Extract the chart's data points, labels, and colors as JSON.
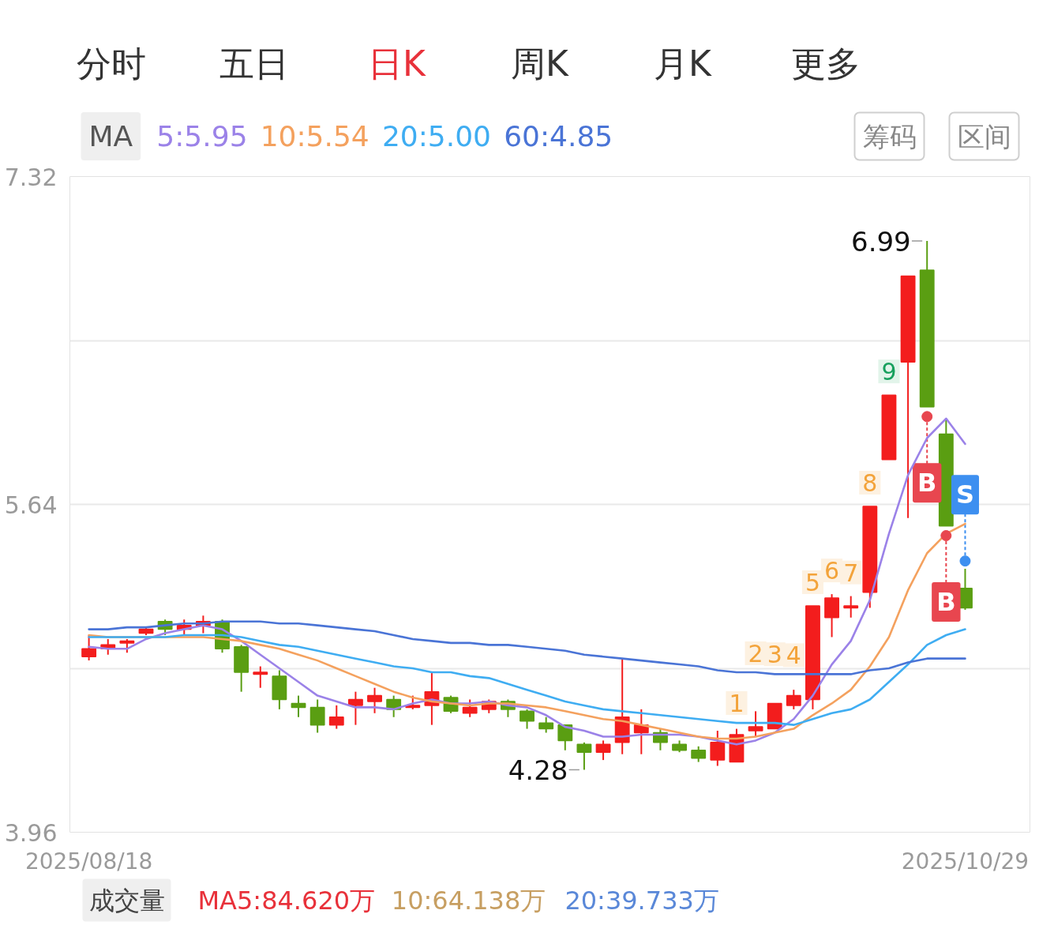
{
  "chart_data": {
    "type": "candlestick",
    "legend": "top left",
    "legend_title": "MA",
    "grid": "y",
    "categories": [
      "2025/08/18",
      null,
      null,
      null,
      null,
      null,
      null,
      null,
      null,
      null,
      null,
      null,
      null,
      null,
      null,
      null,
      null,
      null,
      null,
      null,
      null,
      null,
      null,
      null,
      null,
      null,
      null,
      null,
      null,
      null,
      null,
      null,
      null,
      null,
      null,
      null,
      null,
      null,
      null,
      null,
      null,
      null,
      null,
      null,
      null,
      null,
      "2025/10/29"
    ],
    "ohlc": [
      [
        4.86,
        4.97,
        4.84,
        4.9
      ],
      [
        4.9,
        4.95,
        4.87,
        4.92
      ],
      [
        4.93,
        4.95,
        4.88,
        4.94
      ],
      [
        4.98,
        5.01,
        4.97,
        5.0
      ],
      [
        5.04,
        5.05,
        4.97,
        5.0
      ],
      [
        5.0,
        5.05,
        4.97,
        5.02
      ],
      [
        5.02,
        5.07,
        4.98,
        5.04
      ],
      [
        5.04,
        5.05,
        4.88,
        4.9
      ],
      [
        4.91,
        4.92,
        4.68,
        4.78
      ],
      [
        4.77,
        4.81,
        4.7,
        4.78
      ],
      [
        4.76,
        4.79,
        4.59,
        4.64
      ],
      [
        4.62,
        4.66,
        4.55,
        4.6
      ],
      [
        4.6,
        4.64,
        4.47,
        4.51
      ],
      [
        4.51,
        4.61,
        4.49,
        4.55
      ],
      [
        4.61,
        4.68,
        4.51,
        4.64
      ],
      [
        4.63,
        4.7,
        4.57,
        4.66
      ],
      [
        4.64,
        4.66,
        4.55,
        4.59
      ],
      [
        4.6,
        4.66,
        4.59,
        4.61
      ],
      [
        4.61,
        4.78,
        4.51,
        4.68
      ],
      [
        4.65,
        4.66,
        4.57,
        4.58
      ],
      [
        4.57,
        4.64,
        4.55,
        4.6
      ],
      [
        4.59,
        4.64,
        4.57,
        4.63
      ],
      [
        4.63,
        4.64,
        4.55,
        4.59
      ],
      [
        4.58,
        4.59,
        4.49,
        4.53
      ],
      [
        4.52,
        4.55,
        4.47,
        4.49
      ],
      [
        4.51,
        4.51,
        4.38,
        4.43
      ],
      [
        4.41,
        4.42,
        4.28,
        4.37
      ],
      [
        4.37,
        4.43,
        4.33,
        4.41
      ],
      [
        4.42,
        4.85,
        4.36,
        4.55
      ],
      [
        4.47,
        4.59,
        4.36,
        4.51
      ],
      [
        4.47,
        4.49,
        4.38,
        4.42
      ],
      [
        4.41,
        4.43,
        4.37,
        4.38
      ],
      [
        4.38,
        4.4,
        4.32,
        4.34
      ],
      [
        4.33,
        4.48,
        4.3,
        4.42
      ],
      [
        4.32,
        4.49,
        4.32,
        4.46
      ],
      [
        4.48,
        4.58,
        4.45,
        4.5
      ],
      [
        4.49,
        4.62,
        4.49,
        4.62
      ],
      [
        4.61,
        4.69,
        4.59,
        4.66
      ],
      [
        4.64,
        5.12,
        4.59,
        5.12
      ],
      [
        5.06,
        5.18,
        4.96,
        5.16
      ],
      [
        5.11,
        5.17,
        5.06,
        5.12
      ],
      [
        5.19,
        5.63,
        5.11,
        5.63
      ],
      [
        5.87,
        6.2,
        5.87,
        6.2
      ],
      [
        6.37,
        6.81,
        5.57,
        6.81
      ],
      [
        6.84,
        6.99,
        6.14,
        6.14
      ],
      [
        6.0,
        6.08,
        5.53,
        5.53
      ],
      [
        5.21,
        5.31,
        5.1,
        5.11
      ]
    ],
    "colors": [
      "#f31d1d",
      "#f31d1d",
      "#f31d1d",
      "#f31d1d",
      "#5a9e12",
      "#f31d1d",
      "#f31d1d",
      "#5a9e12",
      "#5a9e12",
      "#f31d1d",
      "#5a9e12",
      "#5a9e12",
      "#5a9e12",
      "#f31d1d",
      "#f31d1d",
      "#f31d1d",
      "#5a9e12",
      "#f31d1d",
      "#f31d1d",
      "#5a9e12",
      "#f31d1d",
      "#f31d1d",
      "#5a9e12",
      "#5a9e12",
      "#5a9e12",
      "#5a9e12",
      "#5a9e12",
      "#f31d1d",
      "#f31d1d",
      "#f31d1d",
      "#5a9e12",
      "#5a9e12",
      "#5a9e12",
      "#f31d1d",
      "#f31d1d",
      "#f31d1d",
      "#f31d1d",
      "#f31d1d",
      "#f31d1d",
      "#f31d1d",
      "#f31d1d",
      "#f31d1d",
      "#f31d1d",
      "#f31d1d",
      "#5a9e12",
      "#5a9e12",
      "#5a9e12"
    ],
    "series": [
      {
        "name": "5:5.95",
        "type": "line",
        "color": "#9b82e8",
        "values": [
          4.91,
          4.9,
          4.9,
          4.95,
          4.98,
          5.0,
          5.02,
          5.0,
          4.94,
          4.87,
          4.8,
          4.73,
          4.66,
          4.63,
          4.6,
          4.6,
          4.59,
          4.62,
          4.64,
          4.62,
          4.62,
          4.63,
          4.61,
          4.6,
          4.56,
          4.5,
          4.48,
          4.45,
          4.45,
          4.46,
          4.46,
          4.46,
          4.45,
          4.43,
          4.41,
          4.43,
          4.47,
          4.54,
          4.66,
          4.82,
          4.94,
          5.15,
          5.49,
          5.79,
          5.98,
          6.08,
          5.95
        ]
      },
      {
        "name": "10:5.54",
        "type": "line",
        "color": "#f4a15e",
        "values": [
          4.97,
          4.96,
          4.96,
          4.96,
          4.96,
          4.96,
          4.96,
          4.95,
          4.94,
          4.92,
          4.9,
          4.87,
          4.84,
          4.8,
          4.76,
          4.72,
          4.68,
          4.65,
          4.63,
          4.62,
          4.61,
          4.62,
          4.62,
          4.61,
          4.6,
          4.58,
          4.56,
          4.54,
          4.53,
          4.51,
          4.49,
          4.47,
          4.45,
          4.44,
          4.44,
          4.45,
          4.47,
          4.49,
          4.56,
          4.62,
          4.69,
          4.81,
          4.96,
          5.2,
          5.39,
          5.49,
          5.54
        ]
      },
      {
        "name": "20:5.00",
        "type": "line",
        "color": "#3fadf2",
        "values": [
          4.96,
          4.96,
          4.96,
          4.96,
          4.96,
          4.97,
          4.97,
          4.97,
          4.96,
          4.94,
          4.92,
          4.91,
          4.89,
          4.87,
          4.85,
          4.83,
          4.81,
          4.8,
          4.78,
          4.78,
          4.76,
          4.75,
          4.72,
          4.69,
          4.66,
          4.63,
          4.61,
          4.59,
          4.58,
          4.57,
          4.56,
          4.55,
          4.54,
          4.53,
          4.52,
          4.52,
          4.52,
          4.51,
          4.54,
          4.57,
          4.59,
          4.64,
          4.73,
          4.82,
          4.92,
          4.97,
          5.0
        ]
      },
      {
        "name": "60:4.85",
        "type": "line",
        "color": "#4a74d6",
        "values": [
          5.0,
          5.0,
          5.01,
          5.01,
          5.02,
          5.03,
          5.03,
          5.04,
          5.04,
          5.04,
          5.03,
          5.03,
          5.02,
          5.01,
          5.0,
          4.99,
          4.97,
          4.95,
          4.94,
          4.93,
          4.93,
          4.92,
          4.92,
          4.91,
          4.9,
          4.89,
          4.87,
          4.86,
          4.85,
          4.84,
          4.83,
          4.82,
          4.81,
          4.79,
          4.78,
          4.78,
          4.77,
          4.77,
          4.77,
          4.77,
          4.77,
          4.79,
          4.8,
          4.83,
          4.85,
          4.85,
          4.85
        ]
      },
      {
        "type": "scatter",
        "marker": "circle",
        "color": "#e8464f",
        "values": [
          null,
          null,
          null,
          null,
          null,
          null,
          null,
          null,
          null,
          null,
          null,
          null,
          null,
          null,
          null,
          null,
          null,
          null,
          null,
          null,
          null,
          null,
          null,
          null,
          null,
          null,
          null,
          null,
          null,
          null,
          null,
          null,
          null,
          null,
          null,
          null,
          null,
          null,
          null,
          null,
          null,
          null,
          null,
          null,
          6.09,
          5.48,
          null
        ]
      },
      {
        "type": "scatter",
        "marker": "circle",
        "color": "#3d8ff0",
        "values": [
          null,
          null,
          null,
          null,
          null,
          null,
          null,
          null,
          null,
          null,
          null,
          null,
          null,
          null,
          null,
          null,
          null,
          null,
          null,
          null,
          null,
          null,
          null,
          null,
          null,
          null,
          null,
          null,
          null,
          null,
          null,
          null,
          null,
          null,
          null,
          null,
          null,
          null,
          null,
          null,
          null,
          null,
          null,
          null,
          null,
          null,
          5.35
        ]
      }
    ],
    "ylim": [
      3.96,
      7.32
    ],
    "yticks": [
      7.32,
      {
        "value": 6.48,
        "label": null
      },
      5.64,
      {
        "value": 4.8,
        "label": null
      },
      3.96
    ],
    "annotations": [
      "分时",
      "五日",
      "日K",
      "周K",
      "月K",
      "更多",
      "筹码",
      "区间",
      "6.99",
      "4.28",
      {
        "text": "1",
        "y": 4.49
      },
      {
        "text": "2",
        "y": 4.58
      },
      {
        "text": "3",
        "y": 4.62
      },
      {
        "text": "4",
        "y": 4.69
      },
      {
        "text": "5",
        "y": 5.12
      },
      {
        "text": "6",
        "y": 5.18
      },
      {
        "text": "7",
        "y": 5.17
      },
      {
        "text": "8",
        "y": 5.63
      },
      {
        "text": "9",
        "y": 6.2
      },
      {
        "text": "B",
        "y": 6.09
      },
      {
        "text": "B",
        "y": 5.48
      },
      {
        "text": "S",
        "y": 5.35
      },
      "成交量",
      "MA5:84.620万",
      "10:64.138万",
      "20:39.733万"
    ]
  }
}
